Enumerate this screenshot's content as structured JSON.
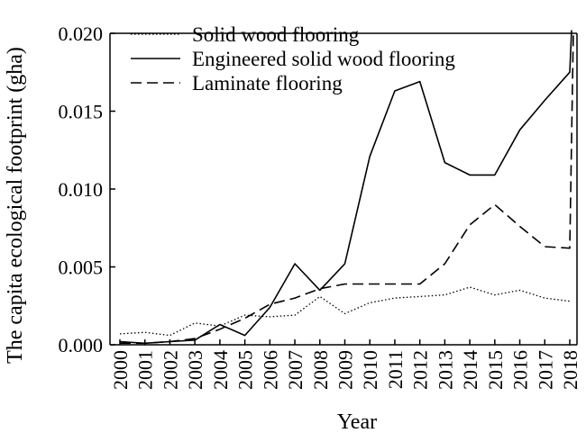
{
  "chart_data": {
    "type": "line",
    "title": "",
    "xlabel": "Year",
    "ylabel": "The capita ecological footprint (gha)",
    "x": [
      "2000",
      "2001",
      "2002",
      "2003",
      "2004",
      "2005",
      "2006",
      "2007",
      "2008",
      "2009",
      "2010",
      "2011",
      "2012",
      "2013",
      "2014",
      "2015",
      "2016",
      "2017",
      "2018"
    ],
    "ylim": [
      0,
      0.02
    ],
    "yticks": [
      "0.000",
      "0.005",
      "0.010",
      "0.015",
      "0.020"
    ],
    "grid": false,
    "legend_position": "top-left",
    "series": [
      {
        "name": "Solid wood flooring",
        "style": "dotted",
        "color": "#000000",
        "values": [
          0.0007,
          0.0008,
          0.0006,
          0.0014,
          0.0012,
          0.0019,
          0.0018,
          0.0019,
          0.0031,
          0.002,
          0.0027,
          0.003,
          0.0031,
          0.0032,
          0.0037,
          0.0032,
          0.0035,
          0.003,
          0.0028
        ]
      },
      {
        "name": "Engineered solid wood flooring",
        "style": "solid",
        "color": "#000000",
        "values": [
          0.0002,
          0.0001,
          0.0002,
          0.0003,
          0.0013,
          0.0006,
          0.0024,
          0.0052,
          0.0035,
          0.0052,
          0.0121,
          0.0163,
          0.0169,
          0.0117,
          0.0109,
          0.0109,
          0.0138,
          0.0157,
          0.0175
        ]
      },
      {
        "name": "Laminate flooring",
        "style": "dashed",
        "color": "#000000",
        "values": [
          0.0001,
          0.0001,
          0.0002,
          0.0004,
          0.001,
          0.0017,
          0.0026,
          0.003,
          0.0036,
          0.0039,
          0.0039,
          0.0039,
          0.0039,
          0.0052,
          0.0077,
          0.009,
          0.0076,
          0.0063,
          0.0062
        ]
      }
    ],
    "series_end_extension": {
      "engineered_x": "2018",
      "engineered_end_value": 0.0202,
      "laminate_x": "2018",
      "laminate_end_value": 0.0202
    }
  }
}
